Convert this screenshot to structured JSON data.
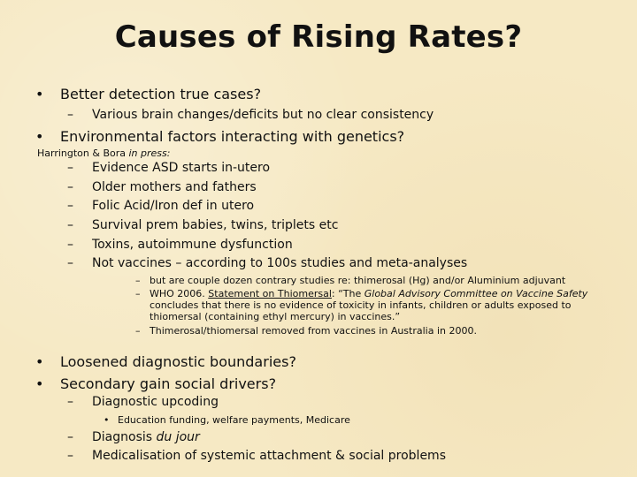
{
  "title": "Causes of Rising Rates?",
  "bullets": {
    "b1": "Better detection true cases?",
    "b1_sub": "Various brain changes/deficits but no clear consistency",
    "b2": "Environmental factors interacting with genetics?",
    "citation_authors": "Harrington & Bora ",
    "citation_status": "in press:",
    "list": [
      "Evidence ASD starts in-utero",
      "Older mothers and fathers",
      "Folic Acid/Iron def in utero",
      "Survival prem babies, twins, triplets etc",
      "Toxins, autoimmune dysfunction",
      "Not vaccines – according to 100s studies and meta-analyses"
    ],
    "vacc_sub1": "but are couple dozen contrary studies re: thimerosal (Hg) and/or Aluminium adjuvant",
    "vacc_sub2_prefix": "WHO 2006. ",
    "vacc_sub2_link": "Statement on Thiomersal",
    "vacc_sub2_mid": ": “The ",
    "vacc_sub2_italic": "Global Advisory Committee on Vaccine Safety",
    "vacc_sub2_cont1": "concludes that there is no evidence of toxicity in infants, children or adults exposed to",
    "vacc_sub2_cont2": "thiomersal (containing ethyl mercury) in vaccines.”",
    "vacc_sub3": "Thimerosal/thiomersal removed from vaccines in Australia in 2000.",
    "b3": "Loosened diagnostic boundaries?",
    "b4": "Secondary gain social drivers?",
    "b4_sub1": "Diagnostic upcoding",
    "b4_sub1_sub": "Education funding, welfare payments, Medicare",
    "b4_sub2_prefix": "Diagnosis ",
    "b4_sub2_italic": "du jour",
    "b4_sub3": "Medicalisation of systemic attachment & social problems"
  },
  "glyphs": {
    "bullet": "•",
    "dash": "–"
  },
  "colors": {
    "background": "#f6e9c4",
    "text": "#111111"
  }
}
